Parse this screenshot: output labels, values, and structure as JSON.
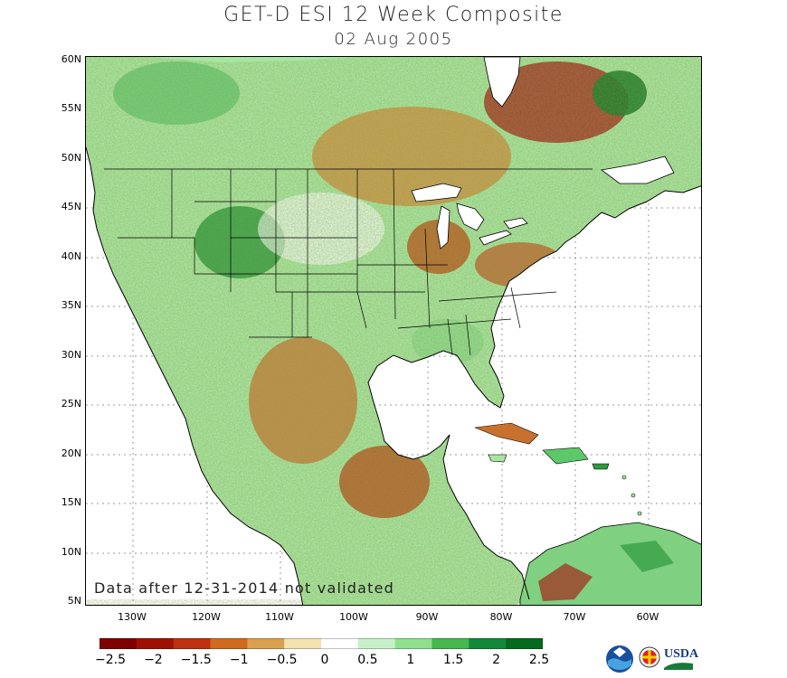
{
  "title": "GET-D ESI 12 Week Composite",
  "date": "02 Aug 2005",
  "note": "Data after 12-31-2014 not validated",
  "lat_labels": [
    "60N",
    "55N",
    "50N",
    "45N",
    "40N",
    "35N",
    "30N",
    "25N",
    "20N",
    "15N",
    "10N",
    "5N"
  ],
  "lon_labels": [
    "130W",
    "120W",
    "110W",
    "100W",
    "90W",
    "80W",
    "70W",
    "60W"
  ],
  "colorbar": {
    "labels": [
      "−2.5",
      "−2",
      "−1.5",
      "−1",
      "−0.5",
      "0",
      "0.5",
      "1",
      "1.5",
      "2",
      "2.5"
    ],
    "colors": [
      "#7f0000",
      "#a01000",
      "#bf3010",
      "#cf6a20",
      "#d9a050",
      "#f3e3b0",
      "#ffffff",
      "#c8f0c8",
      "#8ee08e",
      "#45b84f",
      "#13883a",
      "#056a1e"
    ]
  },
  "logos": {
    "usda": "USDA"
  }
}
